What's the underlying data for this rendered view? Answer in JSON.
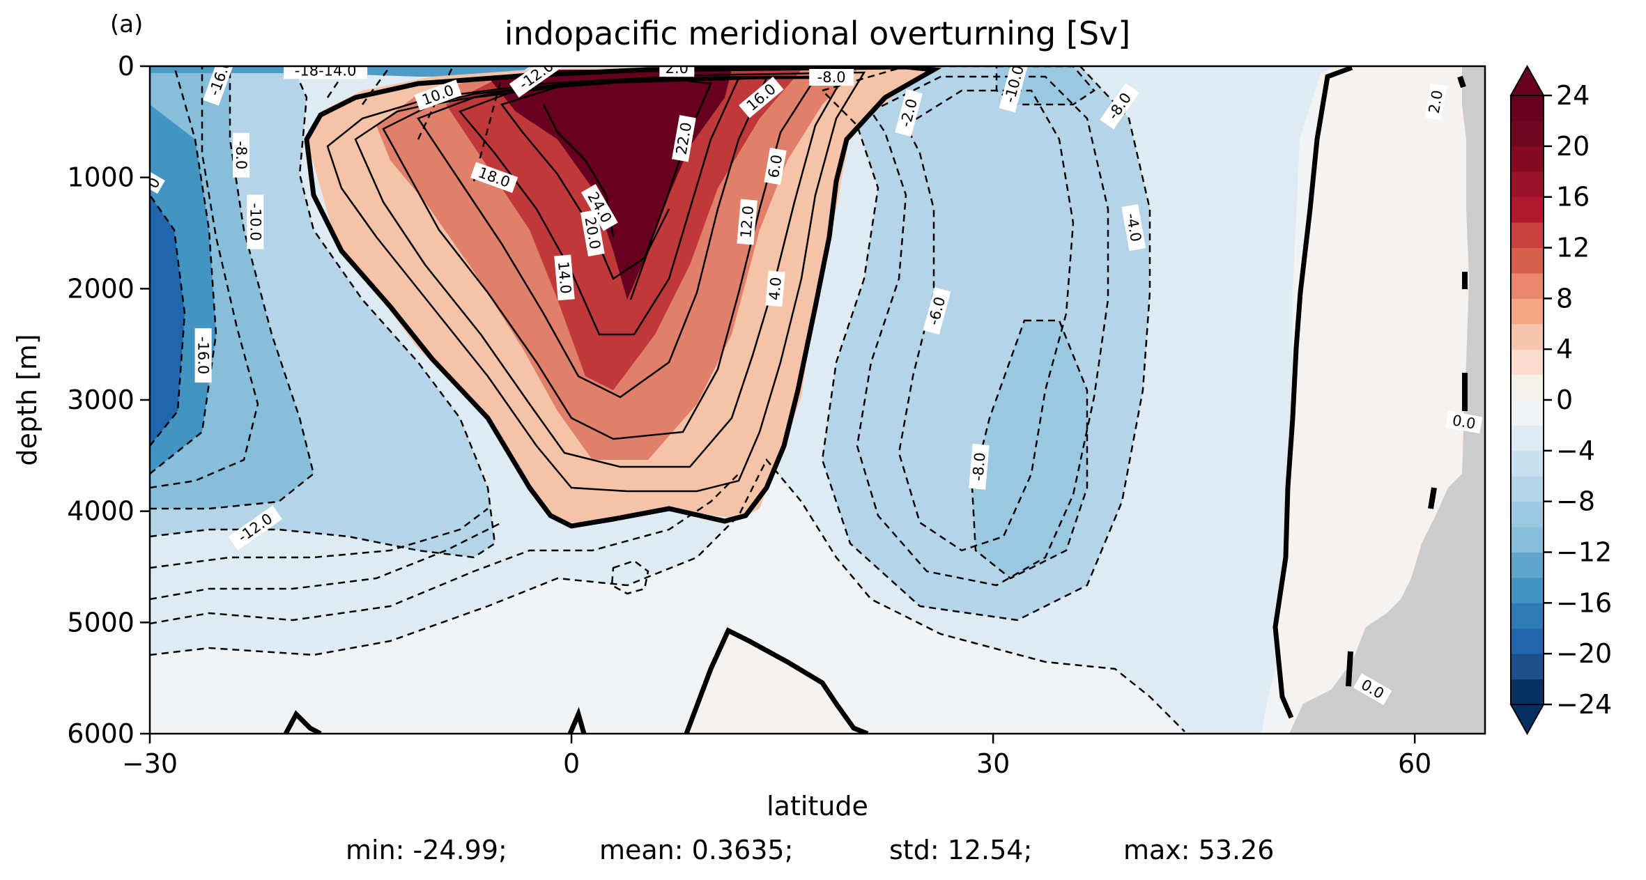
{
  "panel_label": "(a)",
  "stats": {
    "min": "min: -24.99;",
    "mean": "mean: 0.3635;",
    "std": "std: 12.54;",
    "max": "max: 53.26"
  },
  "colors": {
    "land": "#cccccc",
    "contour": "#000000"
  },
  "chart_data": {
    "type": "heatmap",
    "title": "indopacific meridional overturning [Sv]",
    "xlabel": "latitude",
    "ylabel": "depth [m]",
    "xlim": [
      -30,
      65
    ],
    "ylim": [
      6000,
      0
    ],
    "y_inverted": true,
    "x_ticks": [
      -30,
      0,
      30,
      60
    ],
    "x_tick_labels": [
      "−30",
      "0",
      "30",
      "60"
    ],
    "y_ticks": [
      0,
      1000,
      2000,
      3000,
      4000,
      5000,
      6000
    ],
    "y_tick_labels": [
      "0",
      "1000",
      "2000",
      "3000",
      "4000",
      "5000",
      "6000"
    ],
    "colorbar": {
      "range": [
        -24,
        24
      ],
      "step": 2,
      "extend": "both",
      "ticks": [
        -24,
        -20,
        -16,
        -12,
        -8,
        -4,
        0,
        4,
        8,
        12,
        16,
        20,
        24
      ],
      "tick_labels": [
        "−24",
        "−20",
        "−16",
        "−12",
        "−8",
        "−4",
        "0",
        "4",
        "8",
        "12",
        "16",
        "20",
        "24"
      ],
      "colormap": "RdBu_r"
    },
    "contour_labels": [
      {
        "text": "-16.0",
        "lat": -25.0,
        "depth": 100,
        "rot": -70
      },
      {
        "text": "-18-14.0",
        "lat": -17.5,
        "depth": 40,
        "rot": 0
      },
      {
        "text": "-12.0",
        "lat": -2.5,
        "depth": 80,
        "rot": -35
      },
      {
        "text": "2.0",
        "lat": 7.5,
        "depth": 20,
        "rot": 0
      },
      {
        "text": "-8.0",
        "lat": 18.5,
        "depth": 100,
        "rot": 0
      },
      {
        "text": "-10.0",
        "lat": 31.5,
        "depth": 160,
        "rot": -75
      },
      {
        "text": "-8.0",
        "lat": 39.0,
        "depth": 360,
        "rot": -55
      },
      {
        "text": "2.0",
        "lat": 61.5,
        "depth": 320,
        "rot": -80
      },
      {
        "text": "10.0",
        "lat": -9.5,
        "depth": 260,
        "rot": -20
      },
      {
        "text": "16.0",
        "lat": 13.5,
        "depth": 280,
        "rot": -40
      },
      {
        "text": "-2.0",
        "lat": 24.0,
        "depth": 420,
        "rot": -75
      },
      {
        "text": "-8.0",
        "lat": -23.5,
        "depth": 800,
        "rot": 90
      },
      {
        "text": "22.0",
        "lat": 8.0,
        "depth": 650,
        "rot": -80
      },
      {
        "text": "6.0",
        "lat": 14.5,
        "depth": 900,
        "rot": -80
      },
      {
        "text": "18.0",
        "lat": -5.5,
        "depth": 1000,
        "rot": 20
      },
      {
        "text": "0",
        "lat": -29.7,
        "depth": 1050,
        "rot": -60
      },
      {
        "text": "-10.0",
        "lat": -22.5,
        "depth": 1400,
        "rot": 90
      },
      {
        "text": "24.0",
        "lat": 2.0,
        "depth": 1270,
        "rot": 60
      },
      {
        "text": "20.0",
        "lat": 1.5,
        "depth": 1500,
        "rot": 80
      },
      {
        "text": "12.0",
        "lat": 12.5,
        "depth": 1400,
        "rot": -85
      },
      {
        "text": "-4.0",
        "lat": 40.0,
        "depth": 1450,
        "rot": 80
      },
      {
        "text": "14.0",
        "lat": -0.5,
        "depth": 1900,
        "rot": 85
      },
      {
        "text": "4.0",
        "lat": 14.5,
        "depth": 2000,
        "rot": -85
      },
      {
        "text": "-6.0",
        "lat": 26.0,
        "depth": 2200,
        "rot": -75
      },
      {
        "text": "-16.0",
        "lat": -26.2,
        "depth": 2600,
        "rot": 90
      },
      {
        "text": "0.0",
        "lat": 63.5,
        "depth": 3200,
        "rot": 10
      },
      {
        "text": "-8.0",
        "lat": 29.0,
        "depth": 3600,
        "rot": -85
      },
      {
        "text": "-12.0",
        "lat": -22.5,
        "depth": 4150,
        "rot": -35
      },
      {
        "text": "0.0",
        "lat": 57.0,
        "depth": 5600,
        "rot": 30
      }
    ]
  }
}
